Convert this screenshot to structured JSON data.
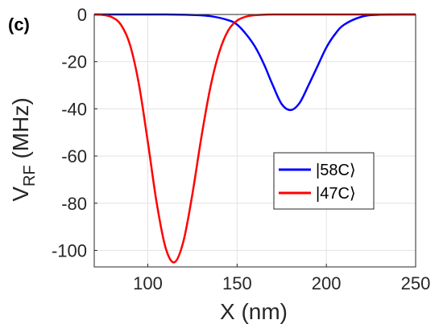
{
  "panel_label": "(c)",
  "chart_data": {
    "type": "line",
    "title": "",
    "xlabel": "X (nm)",
    "ylabel_main": "V",
    "ylabel_sub": "RF",
    "ylabel_unit": " (MHz)",
    "xlim": [
      70,
      250
    ],
    "ylim": [
      -107,
      0
    ],
    "xticks": [
      100,
      150,
      200,
      250
    ],
    "yticks": [
      0,
      -20,
      -40,
      -60,
      -80,
      -100
    ],
    "grid": true,
    "legend_placement": "center-right",
    "series": [
      {
        "name": "|58C⟩",
        "color": "#0000ff",
        "x": [
          70,
          110,
          125,
          135,
          145,
          150,
          155,
          160,
          165,
          170,
          175,
          180,
          185,
          190,
          195,
          200,
          205,
          210,
          220,
          230,
          250
        ],
        "y": [
          0,
          0,
          -0.2,
          -0.7,
          -2.4,
          -4.3,
          -8.3,
          -13.6,
          -21.0,
          -30.0,
          -38.0,
          -40.5,
          -37.5,
          -30.0,
          -22.0,
          -14.0,
          -8.2,
          -4.3,
          -0.9,
          -0.1,
          0
        ]
      },
      {
        "name": "|47C⟩",
        "color": "#ff0000",
        "x": [
          70,
          75,
          80,
          85,
          90,
          95,
          100,
          105,
          110,
          115,
          120,
          125,
          130,
          135,
          140,
          145,
          150,
          155,
          160,
          170,
          180,
          250
        ],
        "y": [
          0,
          -0.2,
          -1.2,
          -4.4,
          -12.8,
          -29.5,
          -54.0,
          -80.0,
          -99.0,
          -105.0,
          -96.0,
          -76.0,
          -52.0,
          -31.0,
          -16.0,
          -6.8,
          -2.6,
          -0.9,
          -0.3,
          0,
          0,
          0
        ]
      }
    ]
  }
}
